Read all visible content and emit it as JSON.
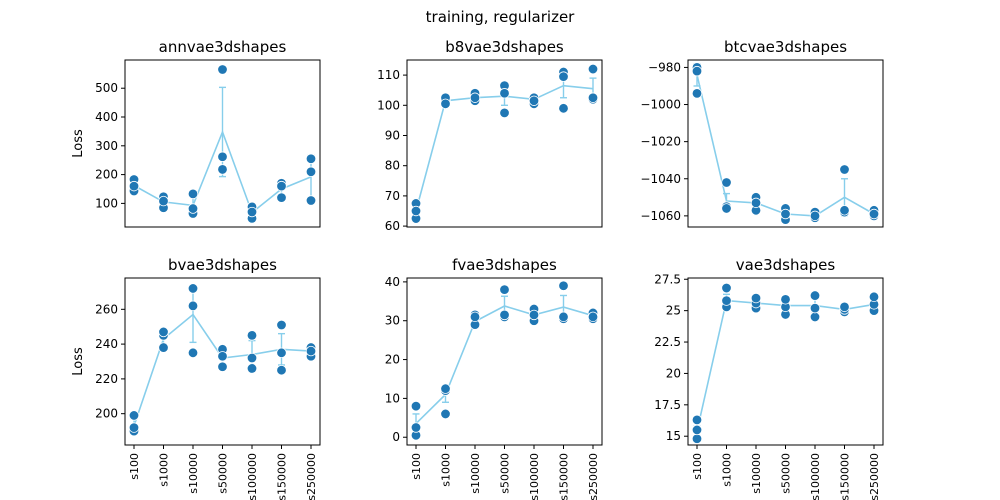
{
  "figure": {
    "title": "training, regularizer"
  },
  "colors": {
    "points": "#1f77b4",
    "line": "#87ceeb"
  },
  "chart_data": [
    {
      "type": "line",
      "title": "annvae3dshapes",
      "ylabel": "Loss",
      "categories": [
        "s100",
        "s1000",
        "s10000",
        "s50000",
        "s100000",
        "s150000",
        "s250000"
      ],
      "points": [
        [
          143,
          183,
          160
        ],
        [
          85,
          123,
          108
        ],
        [
          65,
          133,
          82
        ],
        [
          565,
          262,
          218
        ],
        [
          48,
          88,
          70
        ],
        [
          120,
          170,
          160
        ],
        [
          110,
          255,
          210
        ]
      ],
      "mean": [
        162,
        105,
        93,
        348,
        68,
        150,
        192
      ],
      "err": [
        20,
        20,
        35,
        155,
        20,
        25,
        75
      ],
      "ylim": [
        18,
        598
      ],
      "yticks": [
        100,
        200,
        300,
        400,
        500
      ]
    },
    {
      "type": "line",
      "title": "b8vae3dshapes",
      "ylabel": "",
      "categories": [
        "s100",
        "s1000",
        "s10000",
        "s50000",
        "s100000",
        "s150000",
        "s250000"
      ],
      "points": [
        [
          62.5,
          67.5,
          65
        ],
        [
          101.5,
          102.5,
          100.5
        ],
        [
          101.5,
          104,
          102.5
        ],
        [
          97.5,
          106.5,
          104
        ],
        [
          100.5,
          102.5,
          101.5
        ],
        [
          99,
          111,
          109.5
        ],
        [
          102,
          112,
          102.5
        ]
      ],
      "mean": [
        65,
        101.5,
        102.5,
        103,
        102,
        106.5,
        105.5
      ],
      "err": [
        2.5,
        1,
        1.2,
        3,
        1,
        4,
        3.5
      ],
      "ylim": [
        59.7,
        115
      ],
      "yticks": [
        60,
        70,
        80,
        90,
        100,
        110
      ]
    },
    {
      "type": "line",
      "title": "btcvae3dshapes",
      "ylabel": "",
      "categories": [
        "s100",
        "s1000",
        "s10000",
        "s50000",
        "s100000",
        "s150000",
        "s250000"
      ],
      "points": [
        [
          -994,
          -980,
          -982
        ],
        [
          -1055,
          -1056,
          -1042
        ],
        [
          -1057,
          -1050,
          -1053
        ],
        [
          -1062,
          -1056,
          -1059
        ],
        [
          -1061,
          -1058,
          -1060
        ],
        [
          -1058,
          -1057,
          -1035
        ],
        [
          -1060,
          -1057,
          -1059
        ]
      ],
      "mean": [
        -984,
        -1052,
        -1053,
        -1059,
        -1060,
        -1050,
        -1059
      ],
      "err": [
        6,
        4,
        3,
        3,
        1.5,
        10,
        1.5
      ],
      "ylim": [
        -1066,
        -976
      ],
      "yticks": [
        -1060,
        -1040,
        -1020,
        -1000,
        -980
      ]
    },
    {
      "type": "line",
      "title": "bvae3dshapes",
      "ylabel": "Loss",
      "categories": [
        "s100",
        "s1000",
        "s10000",
        "s50000",
        "s100000",
        "s150000",
        "s250000"
      ],
      "points": [
        [
          190,
          199,
          192
        ],
        [
          238,
          245,
          247
        ],
        [
          235,
          272,
          262
        ],
        [
          227,
          237,
          233
        ],
        [
          226,
          245,
          232
        ],
        [
          225,
          251,
          235
        ],
        [
          233,
          238,
          236
        ]
      ],
      "mean": [
        193,
        243,
        257,
        232,
        234,
        237,
        236
      ],
      "err": [
        4,
        3,
        16,
        4,
        8,
        9,
        2
      ],
      "ylim": [
        182,
        278
      ],
      "yticks": [
        200,
        220,
        240,
        260
      ]
    },
    {
      "type": "line",
      "title": "fvae3dshapes",
      "ylabel": "",
      "categories": [
        "s100",
        "s1000",
        "s10000",
        "s50000",
        "s100000",
        "s150000",
        "s250000"
      ],
      "points": [
        [
          0.5,
          8,
          2.5
        ],
        [
          6,
          12,
          12.5
        ],
        [
          29,
          31.5,
          31
        ],
        [
          31,
          38,
          31.5
        ],
        [
          30,
          33,
          31.5
        ],
        [
          30.5,
          39,
          31
        ],
        [
          30.5,
          32,
          31
        ]
      ],
      "mean": [
        3.5,
        11,
        29.8,
        33.8,
        31.5,
        33.5,
        31.3
      ],
      "err": [
        2.5,
        2,
        1.5,
        2.5,
        1.5,
        3,
        0.8
      ],
      "ylim": [
        -2,
        41
      ],
      "yticks": [
        0,
        10,
        20,
        30,
        40
      ]
    },
    {
      "type": "line",
      "title": "vae3dshapes",
      "ylabel": "",
      "categories": [
        "s100",
        "s1000",
        "s10000",
        "s50000",
        "s100000",
        "s150000",
        "s250000"
      ],
      "points": [
        [
          14.8,
          15.5,
          16.3
        ],
        [
          25.3,
          25.8,
          26.8
        ],
        [
          25.2,
          25.6,
          26.0
        ],
        [
          24.7,
          25.3,
          25.9
        ],
        [
          24.5,
          25.2,
          26.2
        ],
        [
          24.9,
          25.1,
          25.3
        ],
        [
          25.0,
          25.5,
          26.1
        ]
      ],
      "mean": [
        15.4,
        25.8,
        25.6,
        25.4,
        25.4,
        25.1,
        25.5
      ],
      "err": [
        0.4,
        0.5,
        0.3,
        0.4,
        0.6,
        0.2,
        0.4
      ],
      "ylim": [
        14.3,
        27.6
      ],
      "yticks": [
        15.0,
        17.5,
        20.0,
        22.5,
        25.0,
        27.5
      ]
    }
  ]
}
